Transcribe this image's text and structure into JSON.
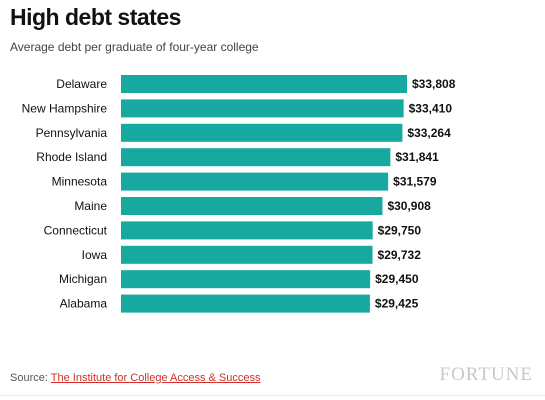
{
  "header": {
    "title": "High debt states",
    "subtitle": "Average debt per graduate of four-year college"
  },
  "footer": {
    "source_prefix": "Source: ",
    "source_link": "The Institute for College Access & Success",
    "brand": "FORTUNE"
  },
  "colors": {
    "bar": "#17a8a0",
    "text": "#111111"
  },
  "chart_data": {
    "type": "bar",
    "orientation": "horizontal",
    "title": "High debt states",
    "subtitle": "Average debt per graduate of four-year college",
    "categories": [
      "Delaware",
      "New Hampshire",
      "Pennsylvania",
      "Rhode Island",
      "Minnesota",
      "Maine",
      "Connecticut",
      "Iowa",
      "Michigan",
      "Alabama"
    ],
    "values": [
      33808,
      33410,
      33264,
      31841,
      31579,
      30908,
      29750,
      29732,
      29450,
      29425
    ],
    "value_labels": [
      "$33,808",
      "$33,410",
      "$33,264",
      "$31,841",
      "$31,579",
      "$30,908",
      "$29,750",
      "$29,732",
      "$29,450",
      "$29,425"
    ],
    "xlim": [
      0,
      33808
    ],
    "grid": false,
    "legend": "none"
  }
}
